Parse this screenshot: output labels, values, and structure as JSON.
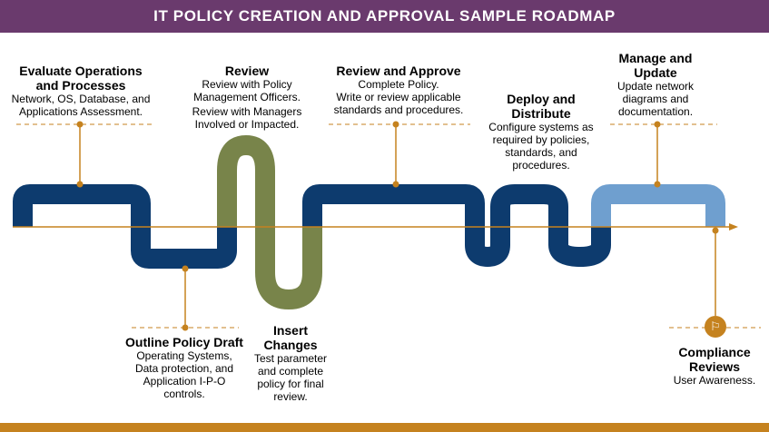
{
  "title": "IT POLICY CREATION AND APPROVAL SAMPLE ROADMAP",
  "colors": {
    "banner": "#6a3a6d",
    "navy": "#0d3b6e",
    "green": "#78844a",
    "light_blue": "#6f9fcf",
    "orange": "#c5821f"
  },
  "steps": {
    "evaluate": {
      "title": "Evaluate Operations and Processes",
      "text": "Network, OS, Database, and Applications Assessment."
    },
    "outline": {
      "title": "Outline Policy Draft",
      "text": "Operating Systems, Data protection, and Application I-P-O controls."
    },
    "review": {
      "title": "Review",
      "text1": "Review with Policy Management Officers.",
      "text2": "Review with Managers Involved or Impacted."
    },
    "insert": {
      "title": "Insert Changes",
      "text": "Test parameter and complete policy for final review."
    },
    "approve": {
      "title": "Review and Approve",
      "text1": "Complete Policy.",
      "text2": "Write or review applicable standards and procedures."
    },
    "deploy": {
      "title": "Deploy and Distribute",
      "text": "Configure systems as required by policies, standards, and procedures."
    },
    "manage": {
      "title": "Manage and Update",
      "text": "Update network diagrams and documentation."
    },
    "compliance": {
      "title": "Compliance Reviews",
      "text": "User Awareness.",
      "icon": "flag-icon"
    }
  }
}
